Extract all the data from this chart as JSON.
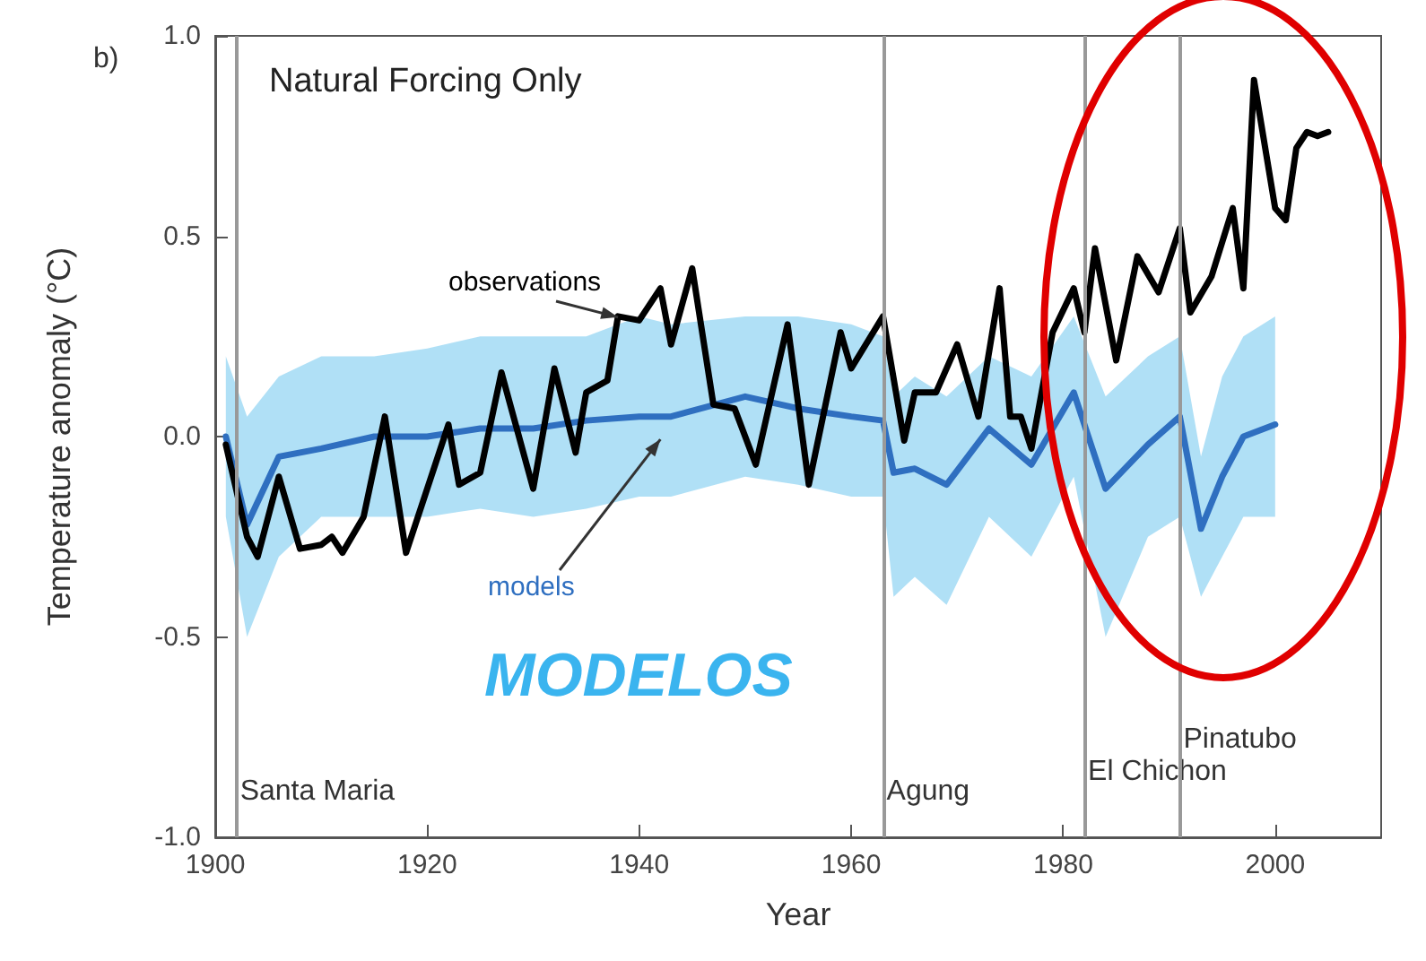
{
  "chart_data": {
    "type": "line",
    "xlabel": "Year",
    "ylabel": "Temperature anomaly (°C)",
    "annotations": [
      "b)",
      "Natural Forcing Only",
      "MODELOS"
    ],
    "xlim": [
      1900,
      2010
    ],
    "xticks": [
      1900,
      1920,
      1940,
      1960,
      1980,
      2000
    ],
    "ylim": [
      -1,
      1
    ],
    "yticks": [
      {
        "value": -1,
        "label": "-1.0"
      },
      {
        "value": -0.5,
        "label": "-0.5"
      },
      {
        "value": 0,
        "label": "0.0"
      },
      {
        "value": 0.5,
        "label": "0.5"
      },
      {
        "value": 1,
        "label": "1.0"
      }
    ],
    "grid": false,
    "legend": false,
    "marker": "none",
    "line_style": "solid",
    "ref_lines": [
      {
        "axis": "x",
        "value": 1902,
        "label": "Santa Maria",
        "color": "#999999"
      },
      {
        "axis": "x",
        "value": 1963,
        "label": "Agung",
        "color": "#999999"
      },
      {
        "axis": "x",
        "value": 1982,
        "label": "El Chichon",
        "color": "#999999"
      },
      {
        "axis": "x",
        "value": 1991,
        "label": "Pinatubo",
        "color": "#999999"
      }
    ],
    "series": [
      {
        "name": "models",
        "color": "#2f6fc0",
        "x": [
          1901,
          1903,
          1906,
          1910,
          1915,
          1920,
          1925,
          1930,
          1935,
          1940,
          1943,
          1950,
          1955,
          1960,
          1963,
          1964,
          1966,
          1969,
          1973,
          1977,
          1981,
          1984,
          1988,
          1991,
          1993,
          1995,
          1997,
          2000
        ],
        "values": [
          0,
          -0.22,
          -0.05,
          -0.03,
          0.0,
          0.0,
          0.02,
          0.02,
          0.04,
          0.05,
          0.05,
          0.1,
          0.07,
          0.05,
          0.04,
          -0.09,
          -0.08,
          -0.12,
          0.02,
          -0.07,
          0.11,
          -0.13,
          -0.02,
          0.05,
          -0.23,
          -0.1,
          0.0,
          0.03
        ],
        "lower": [
          -0.2,
          -0.5,
          -0.3,
          -0.2,
          -0.2,
          -0.2,
          -0.18,
          -0.2,
          -0.18,
          -0.15,
          -0.15,
          -0.1,
          -0.12,
          -0.15,
          -0.15,
          -0.4,
          -0.35,
          -0.42,
          -0.2,
          -0.3,
          -0.1,
          -0.5,
          -0.25,
          -0.2,
          -0.4,
          -0.3,
          -0.2,
          -0.2
        ],
        "upper": [
          0.2,
          0.05,
          0.15,
          0.2,
          0.2,
          0.22,
          0.25,
          0.25,
          0.25,
          0.3,
          0.28,
          0.3,
          0.3,
          0.28,
          0.25,
          0.1,
          0.15,
          0.1,
          0.2,
          0.15,
          0.3,
          0.1,
          0.2,
          0.25,
          -0.05,
          0.15,
          0.25,
          0.3
        ]
      },
      {
        "name": "observations",
        "color": "#000000",
        "x": [
          1901,
          1903,
          1904,
          1906,
          1908,
          1910,
          1911,
          1912,
          1914,
          1916,
          1918,
          1922,
          1923,
          1925,
          1927,
          1930,
          1932,
          1934,
          1935,
          1937,
          1938,
          1940,
          1942,
          1943,
          1945,
          1947,
          1949,
          1951,
          1954,
          1956,
          1959,
          1960,
          1963,
          1965,
          1966,
          1968,
          1970,
          1972,
          1974,
          1975,
          1976,
          1977,
          1979,
          1981,
          1982,
          1983,
          1985,
          1987,
          1989,
          1991,
          1992,
          1994,
          1996,
          1997,
          1998,
          2000,
          2001,
          2002,
          2003,
          2004,
          2005
        ],
        "values": [
          -0.02,
          -0.25,
          -0.3,
          -0.1,
          -0.28,
          -0.27,
          -0.25,
          -0.29,
          -0.2,
          0.05,
          -0.29,
          0.03,
          -0.12,
          -0.09,
          0.16,
          -0.13,
          0.17,
          -0.04,
          0.11,
          0.14,
          0.3,
          0.29,
          0.37,
          0.23,
          0.42,
          0.08,
          0.07,
          -0.07,
          0.28,
          -0.12,
          0.26,
          0.17,
          0.3,
          -0.01,
          0.11,
          0.11,
          0.23,
          0.05,
          0.37,
          0.05,
          0.05,
          -0.03,
          0.26,
          0.37,
          0.26,
          0.47,
          0.19,
          0.45,
          0.36,
          0.52,
          0.31,
          0.4,
          0.57,
          0.37,
          0.89,
          0.57,
          0.54,
          0.72,
          0.76,
          0.75,
          0.76
        ]
      }
    ]
  }
}
